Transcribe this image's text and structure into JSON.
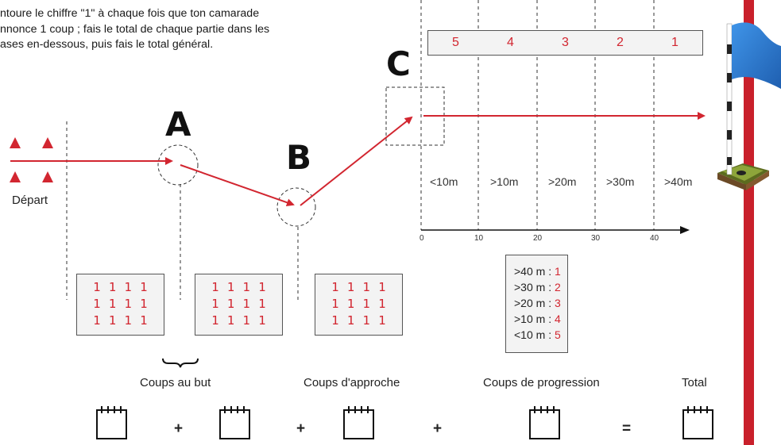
{
  "instructions": "ntoure le chiffre \"1\" à chaque fois que ton camarade\nnnonce 1 coup ; fais le total de chaque partie dans les\nases en-dessous, puis fais le total général.",
  "points": {
    "a": "A",
    "b": "B",
    "c": "C"
  },
  "start_label": "Départ",
  "score_boxes": [
    {
      "rows": [
        "1 1 1 1",
        "1 1 1 1",
        "1 1 1 1"
      ]
    },
    {
      "rows": [
        "1 1 1 1",
        "1 1 1 1",
        "1 1 1 1"
      ]
    },
    {
      "rows": [
        "1 1 1 1",
        "1 1 1 1",
        "1 1 1 1"
      ]
    }
  ],
  "top_scores": [
    "5",
    "4",
    "3",
    "2",
    "1"
  ],
  "zones": [
    "<10m",
    ">10m",
    ">20m",
    ">30m",
    ">40m"
  ],
  "axis_ticks": [
    "0",
    "10",
    "20",
    "30",
    "40"
  ],
  "legend": [
    {
      "label": ">40 m :",
      "value": "1"
    },
    {
      "label": ">30 m :",
      "value": "2"
    },
    {
      "label": ">20 m :",
      "value": "3"
    },
    {
      "label": ">10 m :",
      "value": "4"
    },
    {
      "label": "<10 m :",
      "value": "5"
    }
  ],
  "categories": {
    "but": "Coups au but",
    "approche": "Coups d'approche",
    "progression": "Coups de progression",
    "total": "Total"
  },
  "operators": {
    "plus": "+",
    "equals": "="
  },
  "colors": {
    "accent": "#d22630",
    "flag": "#2f7fd6",
    "pole": "#c9202b"
  },
  "icons": [
    "triangle-marker-icon",
    "golf-flag-icon",
    "notebook-icon",
    "curly-brace-icon"
  ]
}
